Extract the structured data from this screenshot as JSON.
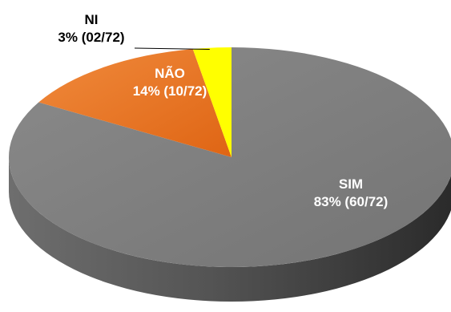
{
  "chart_data": {
    "type": "pie",
    "style": "3d",
    "slices": [
      {
        "label": "SIM",
        "value": 60,
        "percent": "83%",
        "fraction": "(60/72)",
        "color": "#7f7f7f"
      },
      {
        "label": "NÃO",
        "value": 10,
        "percent": "14%",
        "fraction": "(10/72)",
        "color": "#e8711f"
      },
      {
        "label": "NI",
        "value": 2,
        "percent": "3%",
        "fraction": "(02/72)",
        "color": "#ffff00"
      }
    ],
    "total": 72
  }
}
